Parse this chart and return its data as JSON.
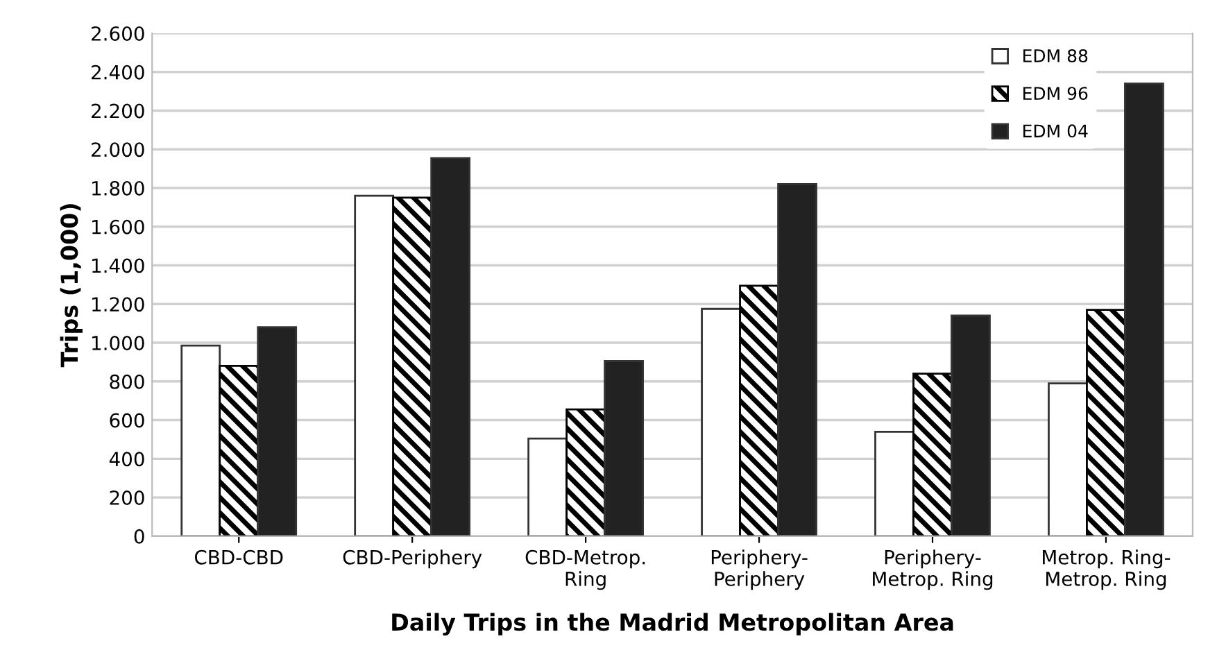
{
  "chart_data": {
    "type": "bar",
    "xlabel": "Daily Trips in the Madrid Metropolitan Area",
    "ylabel": "Trips (1,000)",
    "categories": [
      "CBD-CBD",
      "CBD-Periphery",
      "CBD-Metrop.\nRing",
      "Periphery-\nPeriphery",
      "Periphery-\nMetrop. Ring",
      "Metrop. Ring-\nMetrop. Ring"
    ],
    "series": [
      {
        "name": "EDM 88",
        "color": "#ffffff",
        "values": [
          985,
          1760,
          505,
          1175,
          540,
          790
        ]
      },
      {
        "name": "EDM 96",
        "color": "#000000",
        "values": [
          880,
          1750,
          655,
          1295,
          840,
          1170
        ]
      },
      {
        "name": "EDM 04",
        "color": "#222222",
        "values": [
          1080,
          1955,
          905,
          1820,
          1140,
          2340
        ]
      }
    ],
    "ylim": [
      0,
      2600
    ],
    "yticks": [
      0,
      200,
      400,
      600,
      800,
      {
        "value": 1000,
        "label": "1.000"
      },
      {
        "value": 1200,
        "label": "1.200"
      },
      {
        "value": 1400,
        "label": "1.400"
      },
      {
        "value": 1600,
        "label": "1.600"
      },
      {
        "value": 1800,
        "label": "1.800"
      },
      {
        "value": 2000,
        "label": "2.000"
      },
      {
        "value": 2200,
        "label": "2.200"
      },
      {
        "value": 2400,
        "label": "2.400"
      },
      {
        "value": 2600,
        "label": "2.600"
      }
    ],
    "grid": "y",
    "legend": "top right"
  }
}
